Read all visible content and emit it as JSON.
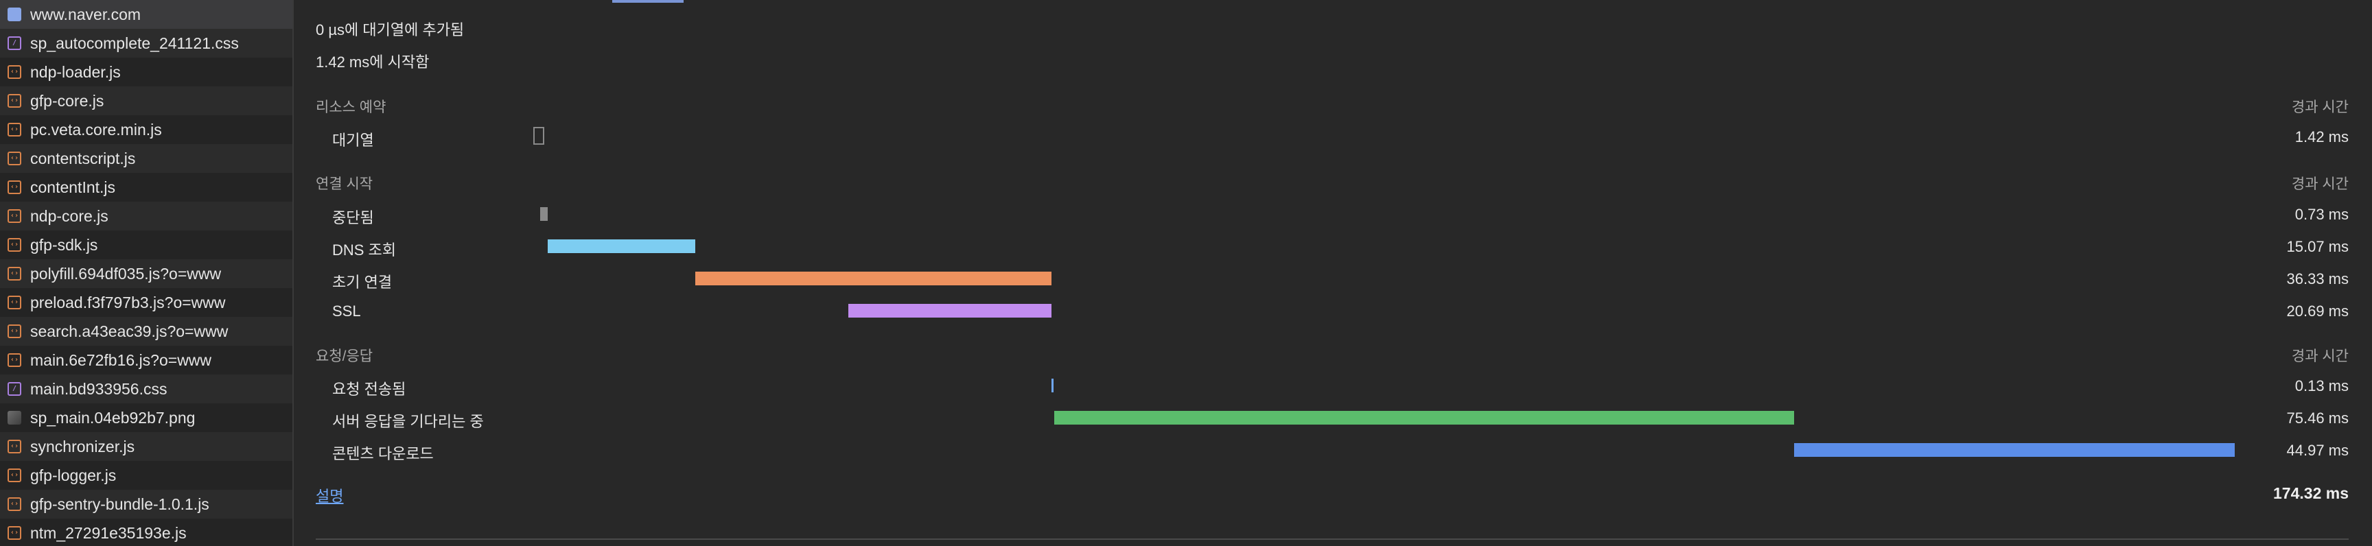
{
  "sidebar": {
    "items": [
      {
        "label": "www.naver.com",
        "type": "html",
        "icon": "document-icon"
      },
      {
        "label": "sp_autocomplete_241121.css",
        "type": "css",
        "icon": "css-file-icon"
      },
      {
        "label": "ndp-loader.js",
        "type": "js",
        "icon": "script-file-icon"
      },
      {
        "label": "gfp-core.js",
        "type": "js",
        "icon": "script-file-icon"
      },
      {
        "label": "pc.veta.core.min.js",
        "type": "js",
        "icon": "script-file-icon"
      },
      {
        "label": "contentscript.js",
        "type": "js",
        "icon": "script-file-icon"
      },
      {
        "label": "contentInt.js",
        "type": "js",
        "icon": "script-file-icon"
      },
      {
        "label": "ndp-core.js",
        "type": "js",
        "icon": "script-file-icon"
      },
      {
        "label": "gfp-sdk.js",
        "type": "js",
        "icon": "script-file-icon"
      },
      {
        "label": "polyfill.694df035.js?o=www",
        "type": "js",
        "icon": "script-file-icon"
      },
      {
        "label": "preload.f3f797b3.js?o=www",
        "type": "js",
        "icon": "script-file-icon"
      },
      {
        "label": "search.a43eac39.js?o=www",
        "type": "js",
        "icon": "script-file-icon"
      },
      {
        "label": "main.6e72fb16.js?o=www",
        "type": "js",
        "icon": "script-file-icon"
      },
      {
        "label": "main.bd933956.css",
        "type": "css",
        "icon": "css-file-icon"
      },
      {
        "label": "sp_main.04eb92b7.png",
        "type": "img",
        "icon": "image-file-icon"
      },
      {
        "label": "synchronizer.js",
        "type": "js",
        "icon": "script-file-icon"
      },
      {
        "label": "gfp-logger.js",
        "type": "js",
        "icon": "script-file-icon"
      },
      {
        "label": "gfp-sentry-bundle-1.0.1.js",
        "type": "js",
        "icon": "script-file-icon"
      },
      {
        "label": "ntm_27291e35193e.js",
        "type": "js",
        "icon": "script-file-icon"
      }
    ]
  },
  "timing": {
    "queued_at": "0 µs에 대기열에 추가됨",
    "started_at": "1.42 ms에 시작함",
    "elapsed_header": "경과 시간",
    "total_duration_ms": 174.32,
    "sections": [
      {
        "title": "리소스 예약",
        "phases": [
          {
            "label": "대기열",
            "value": "1.42 ms",
            "start_ms": 0,
            "duration_ms": 1.42,
            "color": "#8a8a8a",
            "kind": "box"
          }
        ]
      },
      {
        "title": "연결 시작",
        "phases": [
          {
            "label": "중단됨",
            "value": "0.73 ms",
            "start_ms": 1.42,
            "duration_ms": 0.73,
            "color": "#8a8a8a",
            "kind": "bar"
          },
          {
            "label": "DNS 조회",
            "value": "15.07 ms",
            "start_ms": 2.15,
            "duration_ms": 15.07,
            "color": "#7dcdf1",
            "kind": "bar"
          },
          {
            "label": "초기 연결",
            "value": "36.33 ms",
            "start_ms": 17.22,
            "duration_ms": 36.33,
            "color": "#ed915e",
            "kind": "bar"
          },
          {
            "label": "SSL",
            "value": "20.69 ms",
            "start_ms": 32.86,
            "duration_ms": 20.69,
            "color": "#c28cf0",
            "kind": "bar"
          }
        ]
      },
      {
        "title": "요청/응답",
        "phases": [
          {
            "label": "요청 전송됨",
            "value": "0.13 ms",
            "start_ms": 53.55,
            "duration_ms": 0.13,
            "color": "#6fa6f5",
            "kind": "bar"
          },
          {
            "label": "서버 응답을 기다리는 중",
            "value": "75.46 ms",
            "start_ms": 53.89,
            "duration_ms": 75.46,
            "color": "#5bbd6c",
            "kind": "bar"
          },
          {
            "label": "콘텐츠 다운로드",
            "value": "44.97 ms",
            "start_ms": 129.35,
            "duration_ms": 44.97,
            "color": "#5b8de8",
            "kind": "bar"
          }
        ]
      }
    ],
    "footer": {
      "explain_link": "설명",
      "total": "174.32 ms"
    }
  },
  "colors": {
    "background": "#282828",
    "sidebar": "#242424",
    "link": "#6fa6f5"
  }
}
